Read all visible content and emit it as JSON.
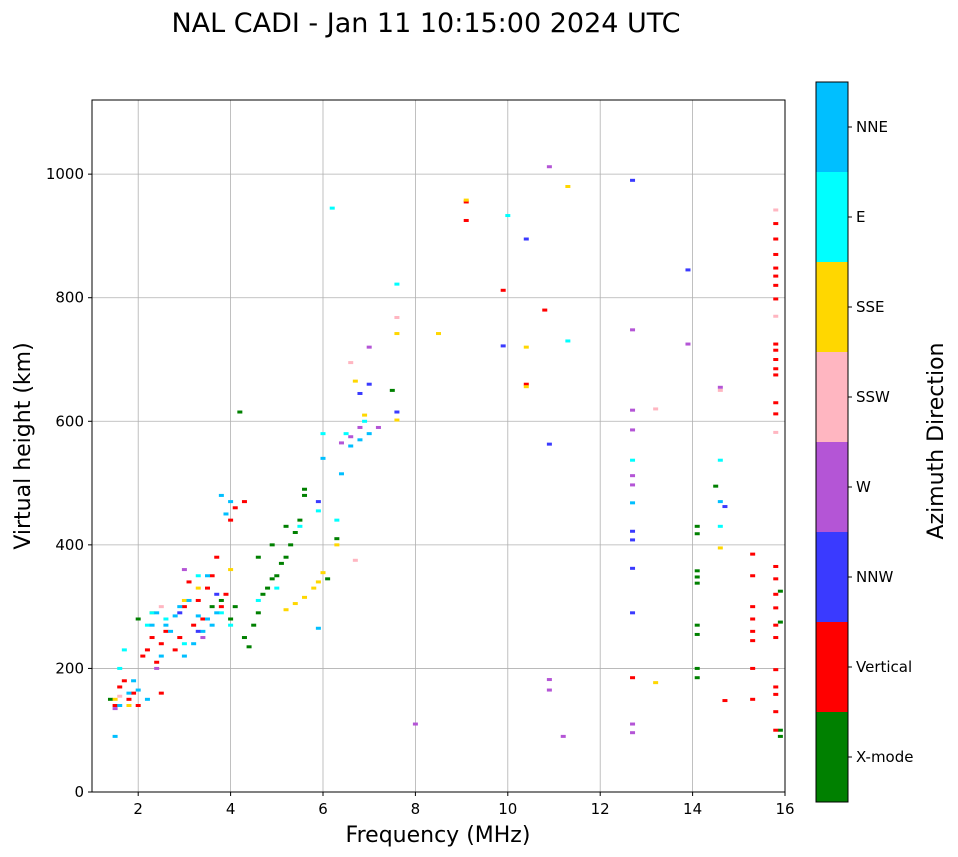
{
  "chart_data": {
    "type": "scatter",
    "title": "NAL CADI - Jan 11 10:15:00 2024 UTC",
    "xlabel": "Frequency (MHz)",
    "ylabel": "Virtual height (km)",
    "xlim": [
      1,
      16
    ],
    "ylim": [
      0,
      1120
    ],
    "xticks": [
      2,
      4,
      6,
      8,
      10,
      12,
      14,
      16
    ],
    "yticks": [
      0,
      200,
      400,
      600,
      800,
      1000
    ],
    "grid": true,
    "colorbar": {
      "label": "Azimuth Direction",
      "categories": [
        {
          "name": "X-mode",
          "color": "#008000"
        },
        {
          "name": "Vertical",
          "color": "#ff0000"
        },
        {
          "name": "NNW",
          "color": "#3a3aff"
        },
        {
          "name": "W",
          "color": "#b455d6"
        },
        {
          "name": "SSW",
          "color": "#ffb6c1"
        },
        {
          "name": "SSE",
          "color": "#ffd700"
        },
        {
          "name": "E",
          "color": "#00ffff"
        },
        {
          "name": "NNE",
          "color": "#00bfff"
        }
      ]
    },
    "series": [
      {
        "name": "X-mode",
        "points": [
          [
            1.4,
            150
          ],
          [
            2.0,
            280
          ],
          [
            3.6,
            300
          ],
          [
            3.8,
            310
          ],
          [
            4.0,
            280
          ],
          [
            4.1,
            300
          ],
          [
            4.2,
            615
          ],
          [
            4.3,
            250
          ],
          [
            4.4,
            235
          ],
          [
            4.5,
            270
          ],
          [
            4.6,
            290
          ],
          [
            4.7,
            320
          ],
          [
            4.8,
            330
          ],
          [
            4.9,
            345
          ],
          [
            5.0,
            350
          ],
          [
            5.1,
            370
          ],
          [
            5.2,
            380
          ],
          [
            5.3,
            400
          ],
          [
            5.4,
            420
          ],
          [
            5.5,
            440
          ],
          [
            5.6,
            480
          ],
          [
            4.6,
            380
          ],
          [
            4.9,
            400
          ],
          [
            5.2,
            430
          ],
          [
            5.6,
            490
          ],
          [
            6.1,
            345
          ],
          [
            6.3,
            410
          ],
          [
            7.5,
            650
          ],
          [
            14.1,
            430
          ],
          [
            14.1,
            418
          ],
          [
            14.1,
            358
          ],
          [
            14.1,
            348
          ],
          [
            14.1,
            338
          ],
          [
            14.1,
            270
          ],
          [
            14.1,
            255
          ],
          [
            14.1,
            200
          ],
          [
            14.1,
            185
          ],
          [
            14.5,
            495
          ],
          [
            15.9,
            325
          ],
          [
            15.9,
            275
          ],
          [
            15.9,
            100
          ],
          [
            15.9,
            90
          ]
        ]
      },
      {
        "name": "Vertical",
        "points": [
          [
            1.5,
            140
          ],
          [
            1.6,
            170
          ],
          [
            1.7,
            180
          ],
          [
            1.8,
            150
          ],
          [
            1.9,
            160
          ],
          [
            2.0,
            140
          ],
          [
            2.1,
            220
          ],
          [
            2.2,
            230
          ],
          [
            2.3,
            250
          ],
          [
            2.4,
            210
          ],
          [
            2.5,
            240
          ],
          [
            2.6,
            260
          ],
          [
            2.8,
            230
          ],
          [
            2.9,
            250
          ],
          [
            3.0,
            300
          ],
          [
            3.1,
            340
          ],
          [
            3.2,
            270
          ],
          [
            3.3,
            310
          ],
          [
            3.4,
            280
          ],
          [
            3.5,
            330
          ],
          [
            3.6,
            350
          ],
          [
            3.7,
            380
          ],
          [
            3.8,
            300
          ],
          [
            3.9,
            320
          ],
          [
            4.0,
            440
          ],
          [
            4.1,
            460
          ],
          [
            4.3,
            470
          ],
          [
            2.5,
            160
          ],
          [
            9.1,
            925
          ],
          [
            9.1,
            955
          ],
          [
            9.9,
            812
          ],
          [
            10.8,
            780
          ],
          [
            10.4,
            660
          ],
          [
            12.7,
            185
          ],
          [
            14.7,
            148
          ],
          [
            15.3,
            385
          ],
          [
            15.3,
            350
          ],
          [
            15.3,
            300
          ],
          [
            15.3,
            280
          ],
          [
            15.3,
            260
          ],
          [
            15.3,
            245
          ],
          [
            15.3,
            200
          ],
          [
            15.3,
            150
          ],
          [
            15.8,
            920
          ],
          [
            15.8,
            895
          ],
          [
            15.8,
            870
          ],
          [
            15.8,
            848
          ],
          [
            15.8,
            835
          ],
          [
            15.8,
            820
          ],
          [
            15.8,
            798
          ],
          [
            15.8,
            725
          ],
          [
            15.8,
            715
          ],
          [
            15.8,
            700
          ],
          [
            15.8,
            685
          ],
          [
            15.8,
            675
          ],
          [
            15.8,
            630
          ],
          [
            15.8,
            612
          ],
          [
            15.8,
            365
          ],
          [
            15.8,
            345
          ],
          [
            15.8,
            320
          ],
          [
            15.8,
            298
          ],
          [
            15.8,
            270
          ],
          [
            15.8,
            250
          ],
          [
            15.8,
            198
          ],
          [
            15.8,
            170
          ],
          [
            15.8,
            158
          ],
          [
            15.8,
            130
          ],
          [
            15.8,
            100
          ]
        ]
      },
      {
        "name": "NNW",
        "points": [
          [
            2.9,
            290
          ],
          [
            3.3,
            260
          ],
          [
            3.7,
            320
          ],
          [
            5.9,
            470
          ],
          [
            6.8,
            645
          ],
          [
            7.0,
            660
          ],
          [
            7.6,
            615
          ],
          [
            9.9,
            722
          ],
          [
            10.4,
            895
          ],
          [
            10.9,
            563
          ],
          [
            12.7,
            990
          ],
          [
            12.7,
            422
          ],
          [
            12.7,
            408
          ],
          [
            12.7,
            362
          ],
          [
            12.7,
            290
          ],
          [
            13.9,
            845
          ],
          [
            14.7,
            462
          ]
        ]
      },
      {
        "name": "W",
        "points": [
          [
            1.5,
            135
          ],
          [
            2.4,
            200
          ],
          [
            3.0,
            360
          ],
          [
            3.4,
            250
          ],
          [
            6.4,
            565
          ],
          [
            6.6,
            575
          ],
          [
            6.8,
            590
          ],
          [
            7.0,
            720
          ],
          [
            7.2,
            590
          ],
          [
            8.0,
            110
          ],
          [
            10.9,
            1012
          ],
          [
            10.9,
            182
          ],
          [
            10.9,
            165
          ],
          [
            11.2,
            90
          ],
          [
            12.7,
            748
          ],
          [
            12.7,
            618
          ],
          [
            12.7,
            586
          ],
          [
            12.7,
            512
          ],
          [
            12.7,
            497
          ],
          [
            12.7,
            110
          ],
          [
            12.7,
            96
          ],
          [
            13.9,
            725
          ],
          [
            14.6,
            655
          ]
        ]
      },
      {
        "name": "SSW",
        "points": [
          [
            1.6,
            155
          ],
          [
            2.5,
            300
          ],
          [
            6.6,
            695
          ],
          [
            6.7,
            375
          ],
          [
            7.6,
            768
          ],
          [
            13.2,
            620
          ],
          [
            14.6,
            650
          ],
          [
            15.8,
            942
          ],
          [
            15.8,
            770
          ],
          [
            15.8,
            582
          ]
        ]
      },
      {
        "name": "SSE",
        "points": [
          [
            1.5,
            150
          ],
          [
            1.8,
            140
          ],
          [
            2.3,
            290
          ],
          [
            3.0,
            310
          ],
          [
            3.3,
            330
          ],
          [
            4.0,
            360
          ],
          [
            5.2,
            295
          ],
          [
            5.4,
            305
          ],
          [
            5.6,
            315
          ],
          [
            5.8,
            330
          ],
          [
            5.9,
            340
          ],
          [
            6.0,
            355
          ],
          [
            6.3,
            400
          ],
          [
            6.7,
            665
          ],
          [
            6.9,
            610
          ],
          [
            7.6,
            742
          ],
          [
            7.6,
            602
          ],
          [
            8.5,
            742
          ],
          [
            9.1,
            958
          ],
          [
            10.4,
            720
          ],
          [
            10.4,
            656
          ],
          [
            11.3,
            980
          ],
          [
            13.2,
            177
          ],
          [
            14.6,
            395
          ]
        ]
      },
      {
        "name": "E",
        "points": [
          [
            1.6,
            200
          ],
          [
            1.7,
            230
          ],
          [
            2.2,
            270
          ],
          [
            2.3,
            290
          ],
          [
            2.6,
            280
          ],
          [
            3.0,
            240
          ],
          [
            3.3,
            350
          ],
          [
            3.8,
            290
          ],
          [
            4.0,
            270
          ],
          [
            4.6,
            310
          ],
          [
            5.0,
            330
          ],
          [
            5.5,
            430
          ],
          [
            5.9,
            455
          ],
          [
            6.0,
            580
          ],
          [
            6.2,
            945
          ],
          [
            6.3,
            440
          ],
          [
            6.5,
            580
          ],
          [
            6.9,
            600
          ],
          [
            7.6,
            822
          ],
          [
            10.0,
            933
          ],
          [
            11.3,
            730
          ],
          [
            12.7,
            537
          ],
          [
            14.6,
            537
          ],
          [
            14.6,
            430
          ]
        ]
      },
      {
        "name": "NNE",
        "points": [
          [
            1.5,
            90
          ],
          [
            1.6,
            140
          ],
          [
            1.8,
            160
          ],
          [
            1.9,
            180
          ],
          [
            2.0,
            165
          ],
          [
            2.2,
            150
          ],
          [
            2.3,
            270
          ],
          [
            2.4,
            290
          ],
          [
            2.5,
            220
          ],
          [
            2.6,
            270
          ],
          [
            2.7,
            260
          ],
          [
            2.8,
            285
          ],
          [
            2.9,
            300
          ],
          [
            3.0,
            220
          ],
          [
            3.1,
            310
          ],
          [
            3.2,
            240
          ],
          [
            3.3,
            285
          ],
          [
            3.4,
            260
          ],
          [
            3.5,
            280
          ],
          [
            3.6,
            270
          ],
          [
            3.7,
            290
          ],
          [
            3.8,
            480
          ],
          [
            3.9,
            450
          ],
          [
            4.0,
            470
          ],
          [
            3.5,
            350
          ],
          [
            5.9,
            265
          ],
          [
            6.0,
            540
          ],
          [
            6.4,
            515
          ],
          [
            6.6,
            560
          ],
          [
            6.8,
            570
          ],
          [
            7.0,
            580
          ],
          [
            12.7,
            468
          ],
          [
            14.6,
            470
          ]
        ]
      }
    ]
  }
}
